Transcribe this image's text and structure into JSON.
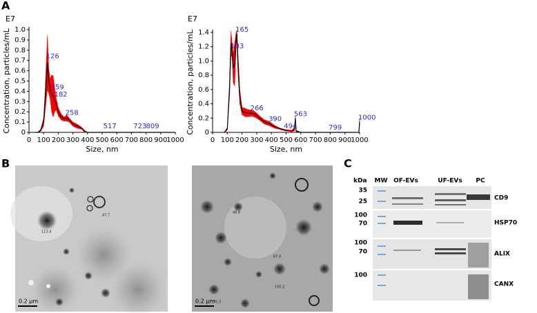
{
  "panels": [
    "A",
    "B",
    "C"
  ],
  "chart_data": [
    {
      "type": "line",
      "y_multiplier": "E7",
      "xlabel": "Size, nm",
      "ylabel": "Concentration, particles/mL",
      "xlim": [
        0,
        1000
      ],
      "xticks": [
        0,
        100,
        200,
        300,
        400,
        500,
        600,
        700,
        800,
        900,
        1000
      ],
      "ylim": [
        0,
        1
      ],
      "yticks": [
        0,
        0.1,
        0.2,
        0.3,
        0.4,
        0.5,
        0.6,
        0.7,
        0.8,
        0.9,
        {
          "value": 1,
          "label": "1.0"
        }
      ],
      "color": "#000000",
      "band_color": "#ff0000",
      "annotation_color": "#2b2bc9",
      "x": [
        40,
        60,
        80,
        100,
        110,
        120,
        126,
        135,
        145,
        155,
        165,
        175,
        185,
        200,
        220,
        240,
        258,
        275,
        300,
        330,
        360,
        380,
        400,
        500,
        600,
        700,
        800,
        900,
        1000
      ],
      "values": [
        0,
        0,
        0.02,
        0.1,
        0.3,
        0.55,
        0.68,
        0.5,
        0.42,
        0.38,
        0.35,
        0.32,
        0.28,
        0.2,
        0.15,
        0.13,
        0.14,
        0.12,
        0.08,
        0.06,
        0.04,
        0.01,
        0,
        0,
        0,
        0,
        0,
        0,
        0
      ],
      "errors": [
        0,
        0,
        0.01,
        0.04,
        0.1,
        0.2,
        0.27,
        0.12,
        0.1,
        0.18,
        0.2,
        0.12,
        0.06,
        0.04,
        0.03,
        0.02,
        0.03,
        0.02,
        0.02,
        0.02,
        0.01,
        0.01,
        0,
        0,
        0,
        0,
        0,
        0,
        0
      ],
      "peaks": [
        {
          "x": 126,
          "y": 0.7
        },
        {
          "x": 159,
          "y": 0.4
        },
        {
          "x": 182,
          "y": 0.33
        },
        {
          "x": 258,
          "y": 0.15
        },
        {
          "x": 517,
          "y": 0.02
        },
        {
          "x": 723,
          "y": 0.02
        },
        {
          "x": 809,
          "y": 0.02
        }
      ]
    },
    {
      "type": "line",
      "y_multiplier": "E7",
      "xlabel": "Size, nm",
      "ylabel": "Concentration, particles/mL",
      "xlim": [
        0,
        1000
      ],
      "xticks": [
        0,
        100,
        200,
        300,
        400,
        500,
        600,
        700,
        800,
        900,
        1000
      ],
      "ylim": [
        0,
        1.4
      ],
      "yticks": [
        0,
        0.2,
        0.4,
        0.6,
        0.8,
        {
          "value": 1,
          "label": "1.0"
        },
        1.2,
        1.4
      ],
      "color": "#000000",
      "band_color": "#ff0000",
      "annotation_color": "#2b2bc9",
      "x": [
        80,
        100,
        115,
        125,
        133,
        140,
        150,
        160,
        165,
        172,
        185,
        200,
        220,
        240,
        266,
        290,
        320,
        350,
        390,
        420,
        460,
        494,
        540,
        558,
        563,
        568,
        600,
        700,
        800,
        900,
        995,
        1000
      ],
      "values": [
        0,
        0.05,
        0.6,
        1.25,
        1.15,
        0.9,
        0.95,
        1.3,
        1.38,
        1.0,
        0.5,
        0.3,
        0.28,
        0.27,
        0.27,
        0.25,
        0.2,
        0.15,
        0.12,
        0.08,
        0.05,
        0.03,
        0.02,
        0.05,
        0.2,
        0.02,
        0,
        0,
        0,
        0,
        0,
        0.15
      ],
      "errors": [
        0,
        0.02,
        0.1,
        0.17,
        0.1,
        0.2,
        0.3,
        0.1,
        0.05,
        0.15,
        0.1,
        0.05,
        0.06,
        0.05,
        0.04,
        0.04,
        0.03,
        0.03,
        0.03,
        0.02,
        0.01,
        0.01,
        0.01,
        0.03,
        0.03,
        0.01,
        0,
        0,
        0,
        0,
        0,
        0.05
      ],
      "peaks": [
        {
          "x": 133,
          "y": 1.15
        },
        {
          "x": 165,
          "y": 1.38
        },
        {
          "x": 266,
          "y": 0.28
        },
        {
          "x": 390,
          "y": 0.13
        },
        {
          "x": 494,
          "y": 0.03
        },
        {
          "x": 563,
          "y": 0.2
        },
        {
          "x": 799,
          "y": 0.01
        },
        {
          "x": 1000,
          "y": 0.15
        }
      ]
    }
  ],
  "tem": [
    {
      "scale_bar": "0.2 µm",
      "labels": [
        "47.7",
        "113.4"
      ]
    },
    {
      "scale_bar": "0.2 µm",
      "labels": [
        "48.8",
        "67.4",
        "70.3",
        "100.2"
      ]
    }
  ],
  "blot": {
    "unit": "kDa",
    "lanes": [
      "MW",
      "OF-EVs",
      "UF-EVs",
      "PC"
    ],
    "rows": [
      {
        "label": "CD9",
        "markers": [
          "35",
          "25"
        ]
      },
      {
        "label": "HSP70",
        "markers": [
          "100",
          "70"
        ]
      },
      {
        "label": "ALIX",
        "markers": [
          "100",
          "70"
        ]
      },
      {
        "label": "CANX",
        "markers": [
          "100"
        ]
      }
    ]
  }
}
